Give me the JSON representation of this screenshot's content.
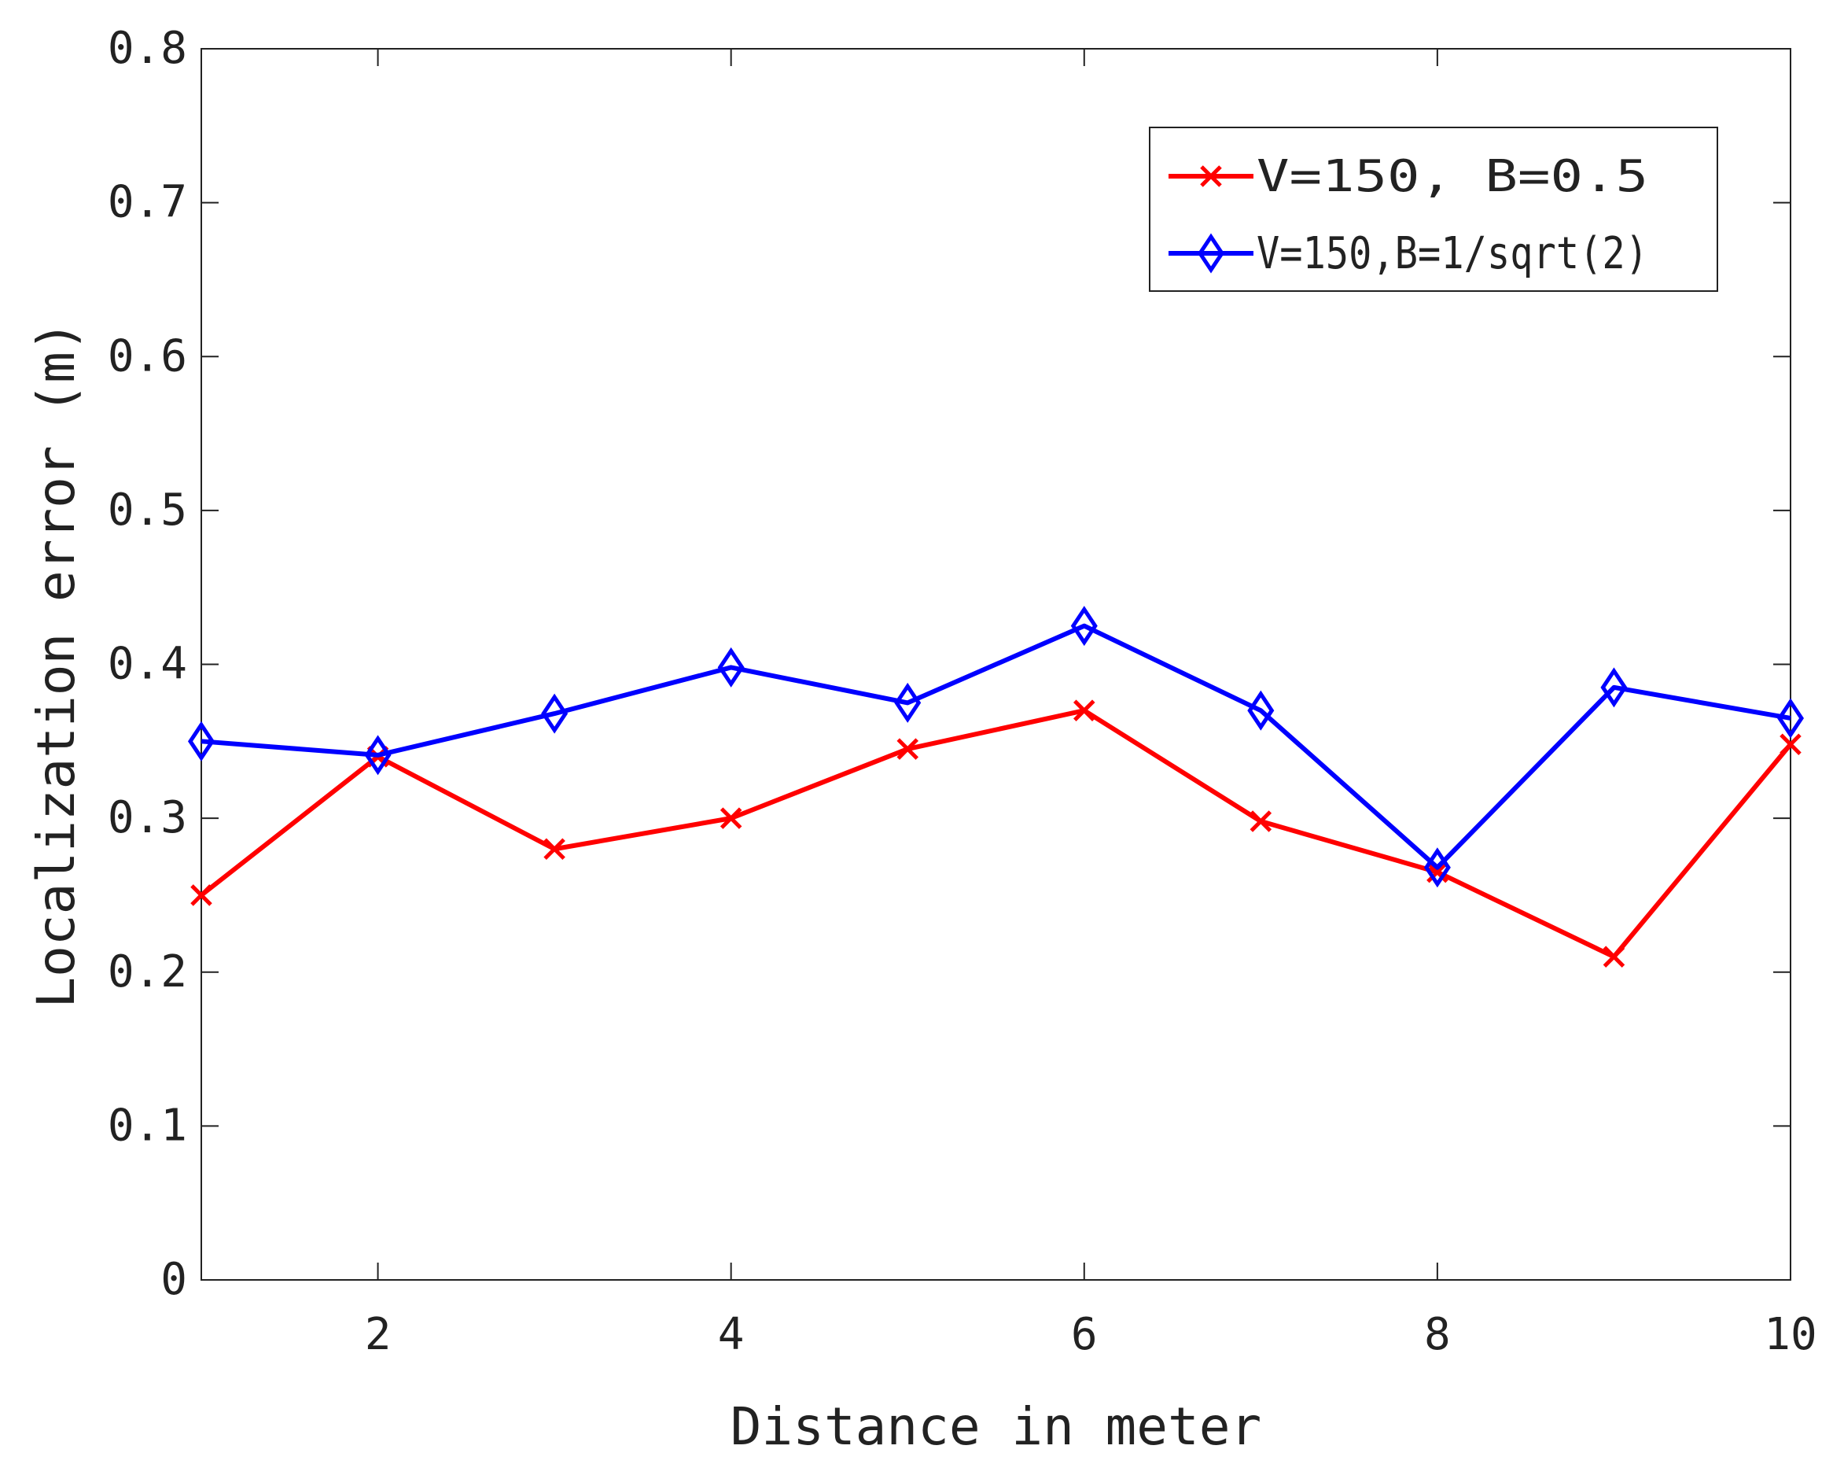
{
  "chart_data": {
    "type": "line",
    "xlabel": "Distance in meter",
    "ylabel": "Localization error (m)",
    "xlim": [
      1,
      10
    ],
    "ylim": [
      0,
      0.8
    ],
    "xticks": [
      2,
      4,
      6,
      8,
      10
    ],
    "xtick_labels": [
      "2",
      "4",
      "6",
      "8",
      "10"
    ],
    "yticks": [
      0,
      0.1,
      0.2,
      0.3,
      0.4,
      0.5,
      0.6,
      0.7,
      0.8
    ],
    "ytick_labels": [
      "0",
      "0.1",
      "0.2",
      "0.3",
      "0.4",
      "0.5",
      "0.6",
      "0.7",
      "0.8"
    ],
    "grid": false,
    "legend_position": "top-right",
    "x": [
      1,
      2,
      3,
      4,
      5,
      6,
      7,
      8,
      9,
      10
    ],
    "series": [
      {
        "name": "V=150, B=0.5",
        "color": "#ff0000",
        "marker": "x",
        "values": [
          0.25,
          0.34,
          0.28,
          0.3,
          0.345,
          0.37,
          0.298,
          0.265,
          0.21,
          0.348
        ]
      },
      {
        "name": "V=150,B=1/sqrt(2)",
        "color": "#0000ff",
        "marker": "diamond",
        "values": [
          0.35,
          0.341,
          0.368,
          0.398,
          0.375,
          0.425,
          0.37,
          0.268,
          0.385,
          0.365
        ]
      }
    ]
  }
}
